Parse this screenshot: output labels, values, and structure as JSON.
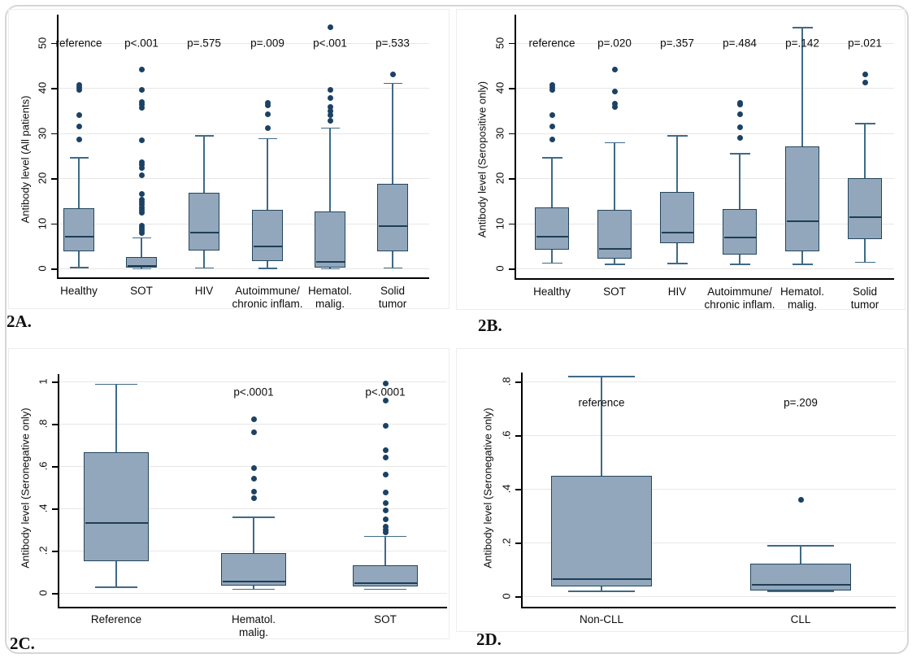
{
  "colors": {
    "box_fill": "#92a7bc",
    "box_border": "#23465e",
    "median_line": "#1e3e55",
    "whisker": "#3f6a87",
    "outlier_dot": "#1b4265",
    "gridline": "#e9e7e4",
    "axis_line": "#000000",
    "text": "#0c0c0c",
    "card_border": "#d6d6d6",
    "region_border": "#ededed"
  },
  "chart_data": [
    {
      "panel": "2A",
      "tag": "2A.",
      "type": "box",
      "title": "",
      "ylabel": "Antibody level (All patients)",
      "xlabel": "",
      "ylim": [
        -2,
        57
      ],
      "grid": true,
      "yticks": [
        0,
        10,
        20,
        30,
        40,
        50
      ],
      "ytick_labels": [
        "0",
        "10",
        "20",
        "30",
        "40",
        "50"
      ],
      "categories": [
        "Healthy",
        "SOT",
        "HIV",
        "Autoimmune/\nchronic inflam.",
        "Hematol.\nmalig.",
        "Solid\ntumor"
      ],
      "annotations": [
        "reference",
        "p<.001",
        "p=.575",
        "p=.009",
        "p<.001",
        "p=.533"
      ],
      "annotation_y": 50,
      "boxes": [
        {
          "category": "Healthy",
          "min": 0.3,
          "q1": 3.8,
          "median": 7.0,
          "q3": 13.4,
          "max": 24.7,
          "outliers": [
            28.6,
            31.4,
            33.9,
            39.5,
            40.1,
            40.6
          ]
        },
        {
          "category": "SOT",
          "min": 0.05,
          "q1": 0.1,
          "median": 0.5,
          "q3": 2.6,
          "max": 6.9,
          "outliers": [
            7.8,
            8.3,
            8.9,
            9.5,
            12.4,
            12.9,
            13.5,
            14.1,
            14.7,
            15.3,
            16.5,
            20.6,
            22.2,
            22.9,
            23.6,
            28.3,
            35.6,
            36.3,
            36.9,
            39.5,
            44.0
          ]
        },
        {
          "category": "HIV",
          "min": 0.2,
          "q1": 4.0,
          "median": 8.0,
          "q3": 16.8,
          "max": 29.5,
          "outliers": []
        },
        {
          "category": "Autoimmune/chronic inflam.",
          "min": 0.15,
          "q1": 1.6,
          "median": 4.9,
          "q3": 12.9,
          "max": 28.9,
          "outliers": [
            31.1,
            34.2,
            36.2,
            36.6
          ]
        },
        {
          "category": "Hematol. malig.",
          "min": 0.05,
          "q1": 0.2,
          "median": 1.5,
          "q3": 12.7,
          "max": 31.2,
          "outliers": [
            32.7,
            33.9,
            34.8,
            35.7,
            37.8,
            39.6,
            53.5
          ]
        },
        {
          "category": "Solid tumor",
          "min": 0.2,
          "q1": 3.8,
          "median": 9.4,
          "q3": 18.7,
          "max": 41.1,
          "outliers": [
            42.9
          ]
        }
      ]
    },
    {
      "panel": "2B",
      "tag": "2B.",
      "type": "box",
      "title": "",
      "ylabel": "Antibody level (Seropositive only)",
      "xlabel": "",
      "ylim": [
        -2,
        57
      ],
      "grid": true,
      "yticks": [
        0,
        10,
        20,
        30,
        40,
        50
      ],
      "ytick_labels": [
        "0",
        "10",
        "20",
        "30",
        "40",
        "50"
      ],
      "categories": [
        "Healthy",
        "SOT",
        "HIV",
        "Autoimmune/\nchronic inflam.",
        "Hematol.\nmalig.",
        "Solid\ntumor"
      ],
      "annotations": [
        "reference",
        "p=.020",
        "p=.357",
        "p=.484",
        "p=.142",
        "p=.021"
      ],
      "annotation_y": 50,
      "boxes": [
        {
          "category": "Healthy",
          "min": 1.3,
          "q1": 4.2,
          "median": 7.0,
          "q3": 13.6,
          "max": 24.7,
          "outliers": [
            28.6,
            31.4,
            33.9,
            39.5,
            40.1,
            40.6
          ]
        },
        {
          "category": "SOT",
          "min": 1.0,
          "q1": 2.2,
          "median": 4.4,
          "q3": 13.0,
          "max": 28.0,
          "outliers": [
            35.8,
            36.5,
            39.2,
            44.0
          ]
        },
        {
          "category": "HIV",
          "min": 1.2,
          "q1": 5.5,
          "median": 8.0,
          "q3": 17.0,
          "max": 29.5,
          "outliers": []
        },
        {
          "category": "Autoimmune/chronic inflam.",
          "min": 1.0,
          "q1": 3.1,
          "median": 6.9,
          "q3": 13.2,
          "max": 25.5,
          "outliers": [
            29.0,
            31.2,
            34.2,
            36.3,
            36.7
          ]
        },
        {
          "category": "Hematol. malig.",
          "min": 1.0,
          "q1": 3.7,
          "median": 10.5,
          "q3": 27.0,
          "max": 53.5,
          "outliers": []
        },
        {
          "category": "Solid tumor",
          "min": 1.5,
          "q1": 6.4,
          "median": 11.3,
          "q3": 20.0,
          "max": 32.2,
          "outliers": [
            41.2,
            43.0
          ]
        }
      ]
    },
    {
      "panel": "2C",
      "tag": "2C.",
      "type": "box",
      "title": "",
      "ylabel": "Antibody level (Seronegative only)",
      "xlabel": "",
      "ylim": [
        -0.05,
        1.05
      ],
      "grid": true,
      "yticks": [
        0,
        0.2,
        0.4,
        0.6,
        0.8,
        1
      ],
      "ytick_labels": [
        "0",
        ".2",
        ".4",
        ".6",
        ".8",
        "1"
      ],
      "categories": [
        "Reference",
        "Hematol.\nmalig.",
        "SOT"
      ],
      "annotations": [
        "",
        "p<.0001",
        "p<.0001"
      ],
      "annotation_y": 0.95,
      "boxes": [
        {
          "category": "Reference",
          "min": 0.03,
          "q1": 0.15,
          "median": 0.33,
          "q3": 0.665,
          "max": 0.99,
          "outliers": []
        },
        {
          "category": "Hematol. malig.",
          "min": 0.02,
          "q1": 0.035,
          "median": 0.055,
          "q3": 0.19,
          "max": 0.36,
          "outliers": [
            0.45,
            0.48,
            0.54,
            0.59,
            0.76,
            0.82
          ]
        },
        {
          "category": "SOT",
          "min": 0.02,
          "q1": 0.03,
          "median": 0.045,
          "q3": 0.13,
          "max": 0.27,
          "outliers": [
            0.285,
            0.3,
            0.315,
            0.35,
            0.39,
            0.425,
            0.475,
            0.56,
            0.64,
            0.675,
            0.79,
            0.91,
            0.99
          ]
        }
      ]
    },
    {
      "panel": "2D",
      "tag": "2D.",
      "type": "box",
      "title": "",
      "ylabel": "Antibody level (Seronegative only)",
      "xlabel": "",
      "ylim": [
        -0.04,
        0.87
      ],
      "grid": true,
      "yticks": [
        0,
        0.2,
        0.4,
        0.6,
        0.8
      ],
      "ytick_labels": [
        "0",
        ".2",
        ".4",
        ".6",
        ".8"
      ],
      "categories": [
        "Non-CLL",
        "CLL"
      ],
      "annotations": [
        "reference",
        "p=.209"
      ],
      "annotation_y": 0.72,
      "boxes": [
        {
          "category": "Non-CLL",
          "min": 0.02,
          "q1": 0.035,
          "median": 0.065,
          "q3": 0.447,
          "max": 0.82,
          "outliers": []
        },
        {
          "category": "CLL",
          "min": 0.02,
          "q1": 0.022,
          "median": 0.042,
          "q3": 0.12,
          "max": 0.19,
          "outliers": [
            0.36
          ]
        }
      ]
    }
  ]
}
